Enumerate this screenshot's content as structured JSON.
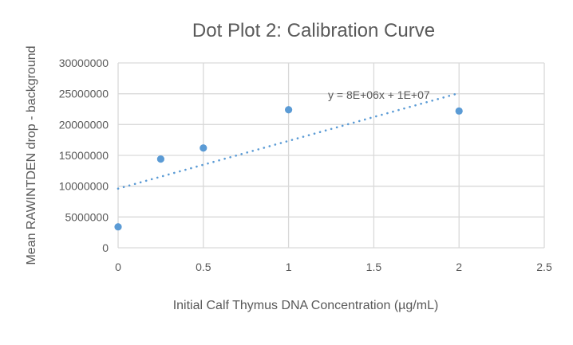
{
  "chart_data": {
    "type": "scatter",
    "title": "Dot Plot 2: Calibration Curve",
    "xlabel": "Initial Calf Thymus DNA Concentration (µg/mL)",
    "ylabel": "Mean RAWINTDEN drop - background",
    "xlim": [
      0,
      2.5
    ],
    "ylim": [
      0,
      30000000
    ],
    "x_ticks": [
      "0",
      "0.5",
      "1",
      "1.5",
      "2",
      "2.5"
    ],
    "y_ticks": [
      "0",
      "5000000",
      "10000000",
      "15000000",
      "20000000",
      "25000000",
      "30000000"
    ],
    "grid": true,
    "legend": "none",
    "points": [
      {
        "x": 0,
        "y": 3400000
      },
      {
        "x": 0.25,
        "y": 14400000
      },
      {
        "x": 0.5,
        "y": 16200000
      },
      {
        "x": 1,
        "y": 22400000
      },
      {
        "x": 2,
        "y": 22200000
      }
    ],
    "trendline": {
      "type": "linear",
      "style": "dotted",
      "slope": 7750000,
      "intercept": 9600000,
      "x_range": [
        0,
        2
      ],
      "equation_label": "y = 8E+06x + 1E+07"
    },
    "colors": {
      "marker": "#5B9BD5",
      "grid": "#D9D9D9",
      "text": "#595959"
    }
  }
}
